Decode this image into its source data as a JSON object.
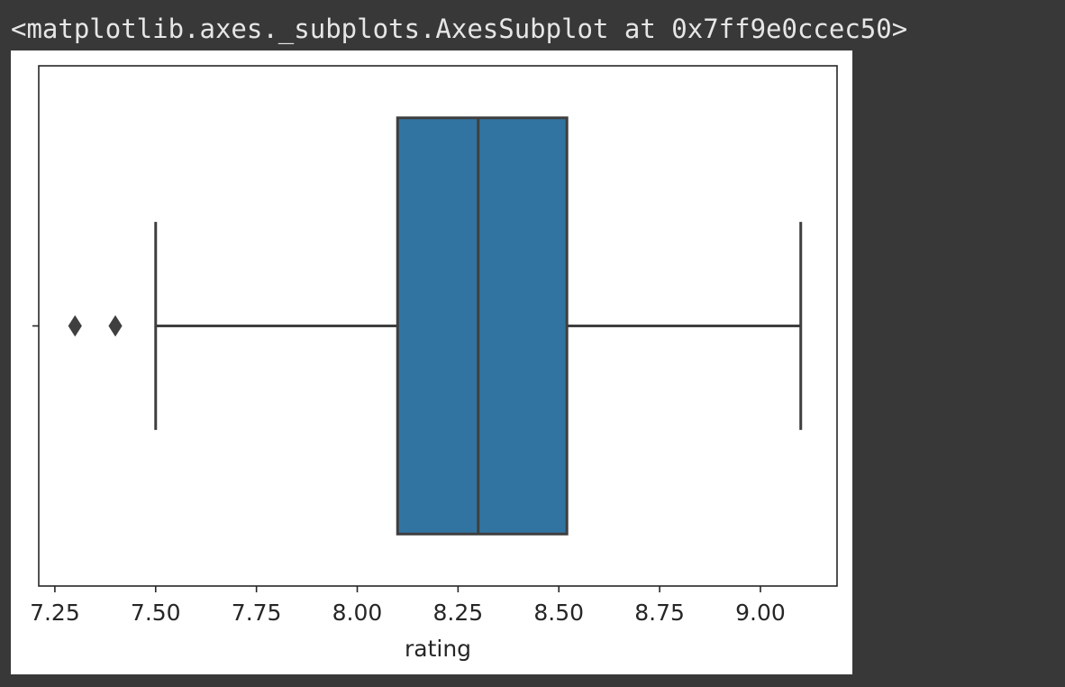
{
  "output": {
    "repr_text": "<matplotlib.axes._subplots.AxesSubplot at 0x7ff9e0ccec50>"
  },
  "chart_data": {
    "type": "box",
    "orientation": "horizontal",
    "xlabel": "rating",
    "ylabel": "",
    "xlim": [
      7.21,
      9.19
    ],
    "xticks": [
      7.25,
      7.5,
      7.75,
      8.0,
      8.25,
      8.5,
      8.75,
      9.0
    ],
    "xtick_labels": [
      "7.25",
      "7.50",
      "7.75",
      "8.00",
      "8.25",
      "8.50",
      "8.75",
      "9.00"
    ],
    "boxes": [
      {
        "whisker_low": 7.5,
        "q1": 8.1,
        "median": 8.3,
        "q3": 8.52,
        "whisker_high": 9.1,
        "outliers": [
          7.3,
          7.4
        ]
      }
    ],
    "box_color": "#3274a1",
    "line_color": "#3f3f3f",
    "grid": false
  }
}
